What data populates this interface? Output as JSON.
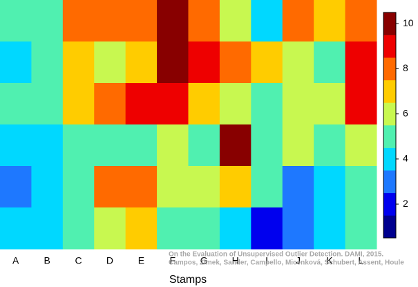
{
  "chart_data": {
    "type": "heatmap",
    "categories": [
      "A",
      "B",
      "C",
      "D",
      "E",
      "F",
      "G",
      "H",
      "I",
      "J",
      "K",
      "L"
    ],
    "values": [
      [
        5,
        5,
        8,
        8,
        8,
        10,
        8,
        6,
        4,
        8,
        7,
        8
      ],
      [
        4,
        5,
        7,
        6,
        7,
        10,
        9,
        8,
        7,
        6,
        5,
        9
      ],
      [
        5,
        5,
        7,
        8,
        9,
        9,
        7,
        6,
        5,
        6,
        6,
        9
      ],
      [
        4,
        4,
        5,
        5,
        5,
        6,
        5,
        10,
        5,
        6,
        5,
        6
      ],
      [
        3,
        4,
        5,
        8,
        8,
        6,
        6,
        7,
        5,
        3,
        4,
        5
      ],
      [
        4,
        4,
        5,
        6,
        7,
        5,
        5,
        4,
        2,
        3,
        4,
        5
      ]
    ],
    "xlabel": "Stamps",
    "colors": [
      "#00008f",
      "#0000ee",
      "#1e78ff",
      "#00d8ff",
      "#50f0b0",
      "#c8f850",
      "#ffcc00",
      "#ff6a00",
      "#ee0000",
      "#880000"
    ],
    "clim": [
      0.5,
      10.5
    ],
    "cticks": [
      2,
      4,
      6,
      8,
      10
    ],
    "annotations": [
      "On the Evaluation of Unsupervised Outlier Detection. DAMI, 2015.",
      "Campos, Zimek, Sander, Campello, Micenková, Schubert, Assent, Houle"
    ]
  }
}
